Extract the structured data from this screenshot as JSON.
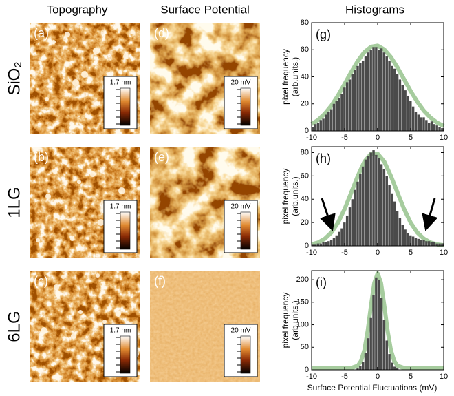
{
  "figure": {
    "column_titles": [
      "Topography",
      "Surface Potential",
      "Histograms"
    ],
    "row_labels": [
      "SiO₂",
      "1LG",
      "6LG"
    ],
    "panels": [
      {
        "label": "(a)",
        "scale": "1.7 nm"
      },
      {
        "label": "(d)",
        "scale": "20 mV"
      },
      {
        "label": "(b)",
        "scale": "1.7 nm"
      },
      {
        "label": "(e)",
        "scale": "20 mV"
      },
      {
        "label": "(c)",
        "scale": "1.7 nm"
      },
      {
        "label": "(f)",
        "scale": "20 mV"
      }
    ]
  },
  "chart_data": [
    {
      "type": "histogram",
      "label": "(g)",
      "ylabel": [
        "pixel frequency",
        "(arb.units.)"
      ],
      "bins": [
        -10,
        -9.6,
        -9.2,
        -8.8,
        -8.4,
        -8,
        -7.6,
        -7.2,
        -6.8,
        -6.4,
        -6,
        -5.6,
        -5.2,
        -4.8,
        -4.4,
        -4,
        -3.6,
        -3.2,
        -2.8,
        -2.4,
        -2,
        -1.6,
        -1.2,
        -0.8,
        -0.4,
        0,
        0.4,
        0.8,
        1.2,
        1.6,
        2,
        2.4,
        2.8,
        3.2,
        3.6,
        4,
        4.4,
        4.8,
        5.2,
        5.6,
        6,
        6.4,
        6.8,
        7.2,
        7.6,
        8,
        8.4,
        8.8,
        9.2,
        9.6,
        10
      ],
      "values": [
        3,
        5,
        6,
        8,
        9,
        12,
        14,
        16,
        20,
        22,
        24,
        27,
        32,
        36,
        38,
        42,
        45,
        48,
        50,
        52,
        55,
        58,
        60,
        62,
        62,
        60,
        61,
        58,
        55,
        52,
        48,
        46,
        42,
        38,
        34,
        30,
        26,
        22,
        18,
        14,
        12,
        10,
        10,
        8,
        6,
        7,
        5,
        4,
        3,
        2
      ],
      "color": "#4a4a4a",
      "fit": {
        "x": [
          -10,
          -9,
          -8,
          -7,
          -6,
          -5,
          -4,
          -3,
          -2,
          -1,
          0,
          1,
          2,
          3,
          4,
          5,
          6,
          7,
          8,
          9,
          10
        ],
        "values": [
          5,
          8.1,
          12.7,
          18.7,
          26.2,
          34.7,
          43.5,
          51.7,
          58.3,
          62.2,
          63,
          60.2,
          54.6,
          46.9,
          38.2,
          29.4,
          21.6,
          14.9,
          9.8,
          6.1,
          3.6
        ],
        "color": "#a6cc9e"
      },
      "xlim": [
        -10,
        10
      ],
      "xticks": [
        -10,
        -5,
        0,
        5,
        10
      ],
      "ylim": [
        0,
        80
      ],
      "yticks": [
        0,
        20,
        40,
        60,
        80
      ]
    },
    {
      "type": "histogram",
      "label": "(h)",
      "ylabel": [
        "pixel frequency",
        "(arb.units.)"
      ],
      "bins": [
        -10,
        -9.6,
        -9.2,
        -8.8,
        -8.4,
        -8,
        -7.6,
        -7.2,
        -6.8,
        -6.4,
        -6,
        -5.6,
        -5.2,
        -4.8,
        -4.4,
        -4,
        -3.6,
        -3.2,
        -2.8,
        -2.4,
        -2,
        -1.6,
        -1.2,
        -0.8,
        -0.4,
        0,
        0.4,
        0.8,
        1.2,
        1.6,
        2,
        2.4,
        2.8,
        3.2,
        3.6,
        4,
        4.4,
        4.8,
        5.2,
        5.6,
        6,
        6.4,
        6.8,
        7.2,
        7.6,
        8,
        8.4,
        8.8,
        9.2,
        9.6,
        10
      ],
      "values": [
        1,
        1,
        2,
        2,
        3,
        3,
        4,
        5,
        7,
        9,
        12,
        15,
        20,
        26,
        33,
        40,
        48,
        55,
        62,
        68,
        74,
        77,
        80,
        82,
        78,
        75,
        70,
        66,
        60,
        52,
        45,
        38,
        30,
        24,
        18,
        14,
        11,
        9,
        8,
        7,
        6,
        5,
        5,
        4,
        4,
        3,
        3,
        2,
        2,
        2
      ],
      "color": "#4a4a4a",
      "fit": {
        "x": [
          -10,
          -9,
          -8,
          -7,
          -6,
          -5,
          -4,
          -3,
          -2,
          -1,
          0,
          1,
          2,
          3,
          4,
          5,
          6,
          7,
          8,
          9,
          10
        ],
        "values": [
          1.3,
          2.9,
          6.1,
          11.5,
          19.9,
          31.6,
          45.7,
          60,
          72.2,
          79,
          79,
          72.2,
          60,
          45.7,
          31.6,
          19.9,
          11.5,
          6.1,
          2.9,
          1.3,
          0.5
        ],
        "color": "#a6cc9e"
      },
      "xlim": [
        -10,
        10
      ],
      "xticks": [
        -10,
        -5,
        0,
        5,
        10
      ],
      "ylim": [
        0,
        85
      ],
      "yticks": [
        0,
        20,
        40,
        60,
        80
      ]
    },
    {
      "type": "histogram",
      "label": "(i)",
      "ylabel": [
        "pixel frequency",
        "(arb.units.)"
      ],
      "xlabel": "Surface Potential Fluctuations (mV)",
      "bins": [
        -10,
        -9.6,
        -9.2,
        -8.8,
        -8.4,
        -8,
        -7.6,
        -7.2,
        -6.8,
        -6.4,
        -6,
        -5.6,
        -5.2,
        -4.8,
        -4.4,
        -4,
        -3.6,
        -3.2,
        -2.8,
        -2.4,
        -2,
        -1.6,
        -1.2,
        -0.8,
        -0.4,
        0,
        0.4,
        0.8,
        1.2,
        1.6,
        2,
        2.4,
        2.8,
        3.2,
        3.6,
        4,
        4.4,
        4.8,
        5.2,
        5.6,
        6,
        6.4,
        6.8,
        7.2,
        7.6,
        8,
        8.4,
        8.8,
        9.2,
        9.6,
        10
      ],
      "values": [
        0,
        0,
        0,
        0,
        0,
        0,
        0,
        0,
        0,
        0,
        0,
        0,
        0,
        0,
        0,
        0,
        0,
        3,
        8,
        18,
        38,
        70,
        115,
        165,
        205,
        200,
        160,
        110,
        65,
        35,
        16,
        7,
        3,
        0,
        0,
        0,
        0,
        0,
        0,
        0,
        0,
        0,
        0,
        0,
        0,
        0,
        0,
        0,
        0,
        0
      ],
      "color": "#4a4a4a",
      "fit": {
        "x": [
          -10,
          -5,
          -4,
          -3,
          -2.5,
          -2,
          -1.5,
          -1,
          -0.5,
          0,
          0.5,
          1,
          1.5,
          2,
          2.5,
          3,
          4,
          5,
          10
        ],
        "values": [
          4,
          4,
          4,
          9,
          20,
          44,
          87,
          143,
          193,
          214,
          193,
          143,
          87,
          44,
          20,
          9,
          4,
          4,
          4
        ],
        "color": "#a6cc9e"
      },
      "xlim": [
        -10,
        10
      ],
      "xticks": [
        -10,
        -5,
        0,
        5,
        10
      ],
      "ylim": [
        0,
        220
      ],
      "yticks": [
        0,
        50,
        100,
        150,
        200
      ]
    }
  ]
}
